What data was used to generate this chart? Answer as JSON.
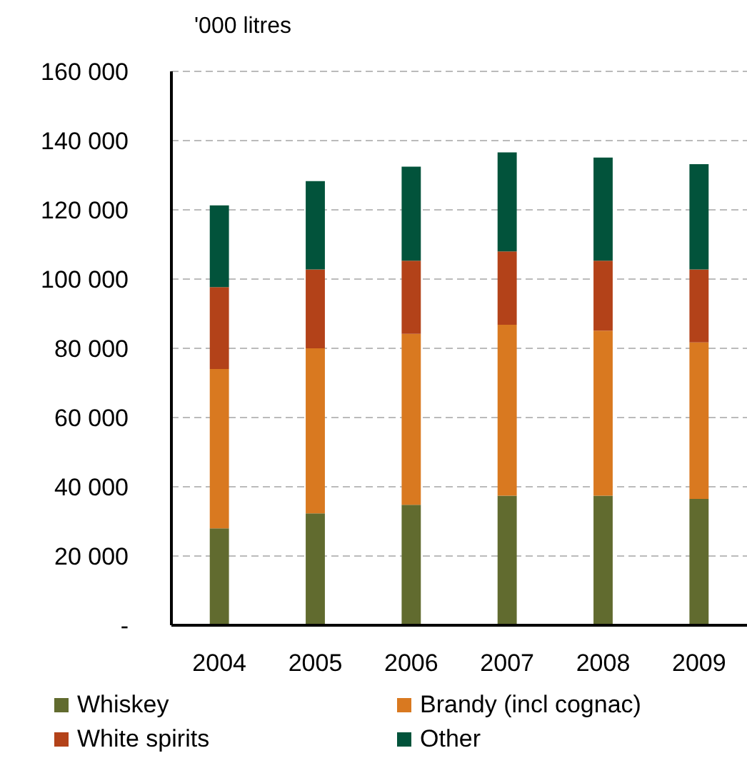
{
  "chart_data": {
    "type": "bar",
    "stacked": true,
    "ylabel": "'000 litres",
    "categories": [
      "2004",
      "2005",
      "2006",
      "2007",
      "2008",
      "2009"
    ],
    "series": [
      {
        "name": "Whiskey",
        "color": "#616b2f",
        "values": [
          28000,
          32300,
          34800,
          37400,
          37400,
          36500
        ]
      },
      {
        "name": "Brandy (incl cognac)",
        "color": "#d97920",
        "values": [
          46000,
          47700,
          49400,
          49400,
          47700,
          45200
        ]
      },
      {
        "name": "White spirits",
        "color": "#b34219",
        "values": [
          23700,
          22800,
          21100,
          21200,
          20200,
          21100
        ]
      },
      {
        "name": "Other",
        "color": "#02533b",
        "values": [
          23600,
          25500,
          27200,
          28600,
          29800,
          30400
        ]
      }
    ],
    "ylim": [
      0,
      160000
    ],
    "yticks": [
      {
        "value": 0,
        "label": "-"
      },
      {
        "value": 20000,
        "label": "20 000"
      },
      {
        "value": 40000,
        "label": "40 000"
      },
      {
        "value": 60000,
        "label": "60 000"
      },
      {
        "value": 80000,
        "label": "80 000"
      },
      {
        "value": 100000,
        "label": "100 000"
      },
      {
        "value": 120000,
        "label": "120 000"
      },
      {
        "value": 140000,
        "label": "140 000"
      },
      {
        "value": 160000,
        "label": "160 000"
      }
    ],
    "grid": "y",
    "legend": "bottom"
  }
}
